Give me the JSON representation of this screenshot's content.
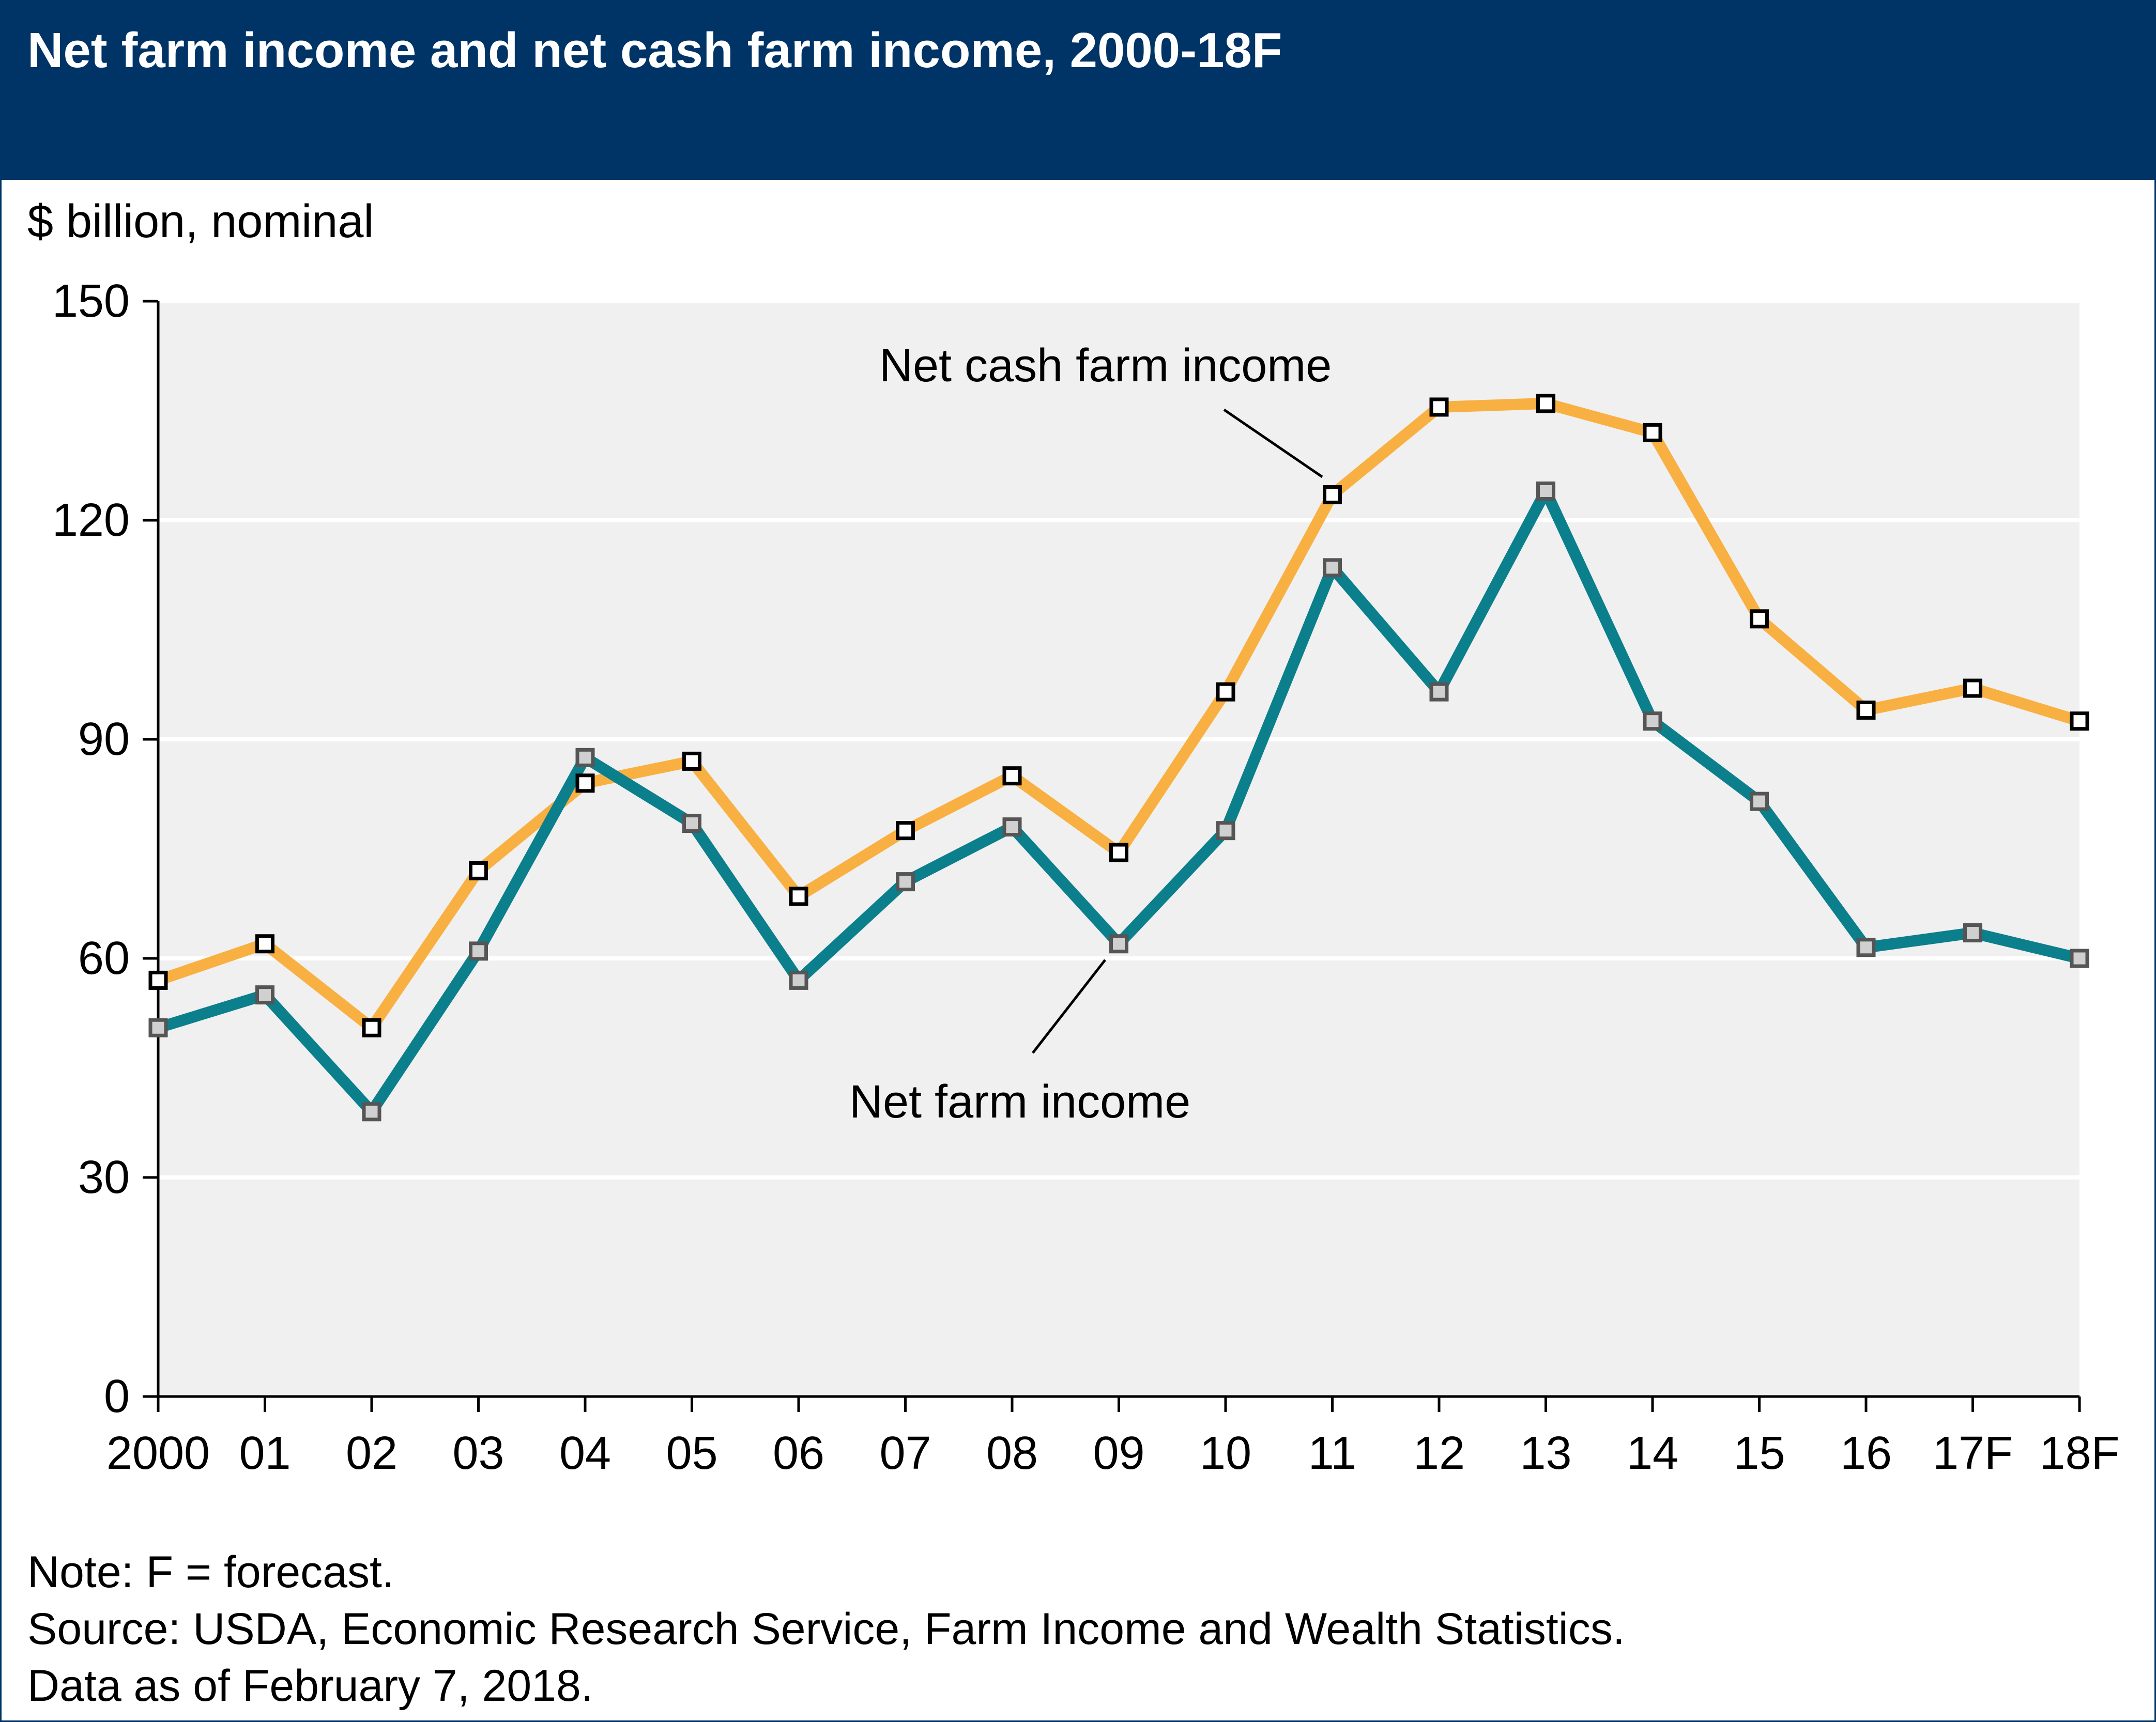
{
  "title": "Net farm income and net cash farm income, 2000-18F",
  "notes": {
    "note": "Note: F = forecast.",
    "source": "Source: USDA, Economic Research Service, Farm Income and Wealth Statistics.",
    "date": "Data as of February 7, 2018."
  },
  "colors": {
    "header": "#003366",
    "net_cash_farm_income": "#f9b042",
    "net_farm_income": "#0b7f8c",
    "plot_background": "#f0f0f0",
    "marker_cash_fill": "#ffffff",
    "marker_farm_fill": "#d0d0d0"
  },
  "chart_data": {
    "type": "line",
    "ylabel": "$ billion, nominal",
    "xlabel": "",
    "categories": [
      "2000",
      "01",
      "02",
      "03",
      "04",
      "05",
      "06",
      "07",
      "08",
      "09",
      "10",
      "11",
      "12",
      "13",
      "14",
      "15",
      "16",
      "17F",
      "18F"
    ],
    "ylim": [
      0,
      150
    ],
    "yticks": [
      0,
      30,
      60,
      90,
      120,
      150
    ],
    "grid": "horizontal",
    "series": [
      {
        "name": "Net cash farm income",
        "values": [
          57,
          62,
          50.5,
          72,
          84,
          87,
          68.5,
          77.5,
          85,
          74.5,
          96.5,
          123.5,
          135.5,
          136,
          132,
          106.5,
          94,
          97,
          92.5
        ]
      },
      {
        "name": "Net farm income",
        "values": [
          50.5,
          55,
          39,
          61,
          87.5,
          78.5,
          57,
          70.5,
          78,
          62,
          77.5,
          113.5,
          96.5,
          124,
          92.5,
          81.5,
          61.5,
          63.5,
          60
        ]
      }
    ]
  }
}
